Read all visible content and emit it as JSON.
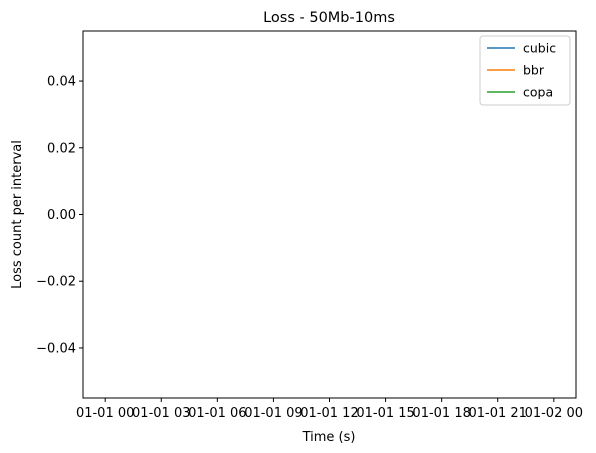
{
  "chart_data": {
    "type": "line",
    "title": "Loss - 50Mb-10ms",
    "xlabel": "Time (s)",
    "ylabel": "Loss count per interval",
    "x_ticks": [
      "01-01 00",
      "01-01 03",
      "01-01 06",
      "01-01 09",
      "01-01 12",
      "01-01 15",
      "01-01 18",
      "01-01 21",
      "01-02 00"
    ],
    "y_ticks": [
      0.04,
      0.02,
      0.0,
      -0.02,
      -0.04
    ],
    "y_tick_labels": [
      "0.04",
      "0.02",
      "0.00",
      "−0.02",
      "−0.04"
    ],
    "ylim": [
      -0.055,
      0.055
    ],
    "grid": false,
    "legend_position": "top-right",
    "series": [
      {
        "name": "cubic",
        "color": "#1f77b4",
        "x": [],
        "y": []
      },
      {
        "name": "bbr",
        "color": "#ff7f0e",
        "x": [],
        "y": []
      },
      {
        "name": "copa",
        "color": "#2ca02c",
        "x": [],
        "y": []
      }
    ]
  }
}
